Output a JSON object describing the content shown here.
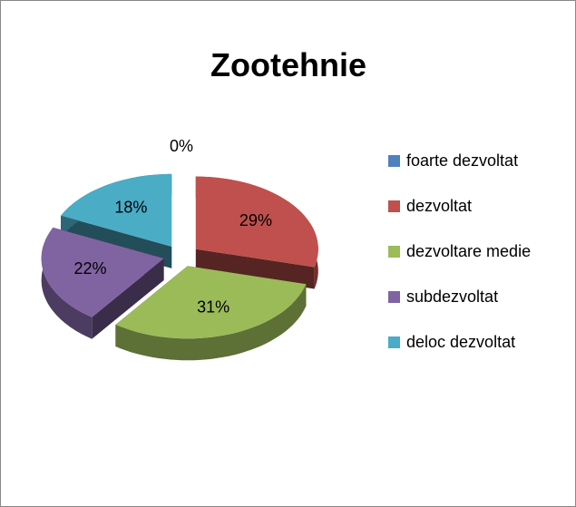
{
  "chart_data": {
    "type": "pie3d",
    "title": "Zootehnie",
    "categories": [
      "foarte dezvoltat",
      "dezvoltat",
      "dezvoltare medie",
      "subdezvoltat",
      "deloc dezvoltat"
    ],
    "values": [
      0,
      29,
      31,
      22,
      18
    ],
    "value_labels": [
      "0%",
      "29%",
      "31%",
      "22%",
      "18%"
    ],
    "colors": [
      "#4f81bd",
      "#c0504d",
      "#9bbb59",
      "#8064a2",
      "#4bacc6"
    ],
    "legend": "right"
  }
}
